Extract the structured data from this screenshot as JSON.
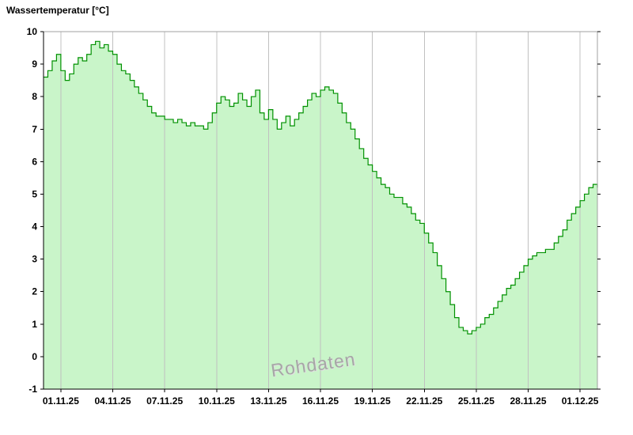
{
  "chart_data": {
    "type": "area",
    "title": "Wassertemperatur [°C]",
    "watermark": "Rohdaten",
    "series_name": "Wassertemperatur",
    "unit": "°C",
    "ylim": [
      -1,
      10
    ],
    "y_ticks": [
      -1,
      0,
      1,
      2,
      3,
      4,
      5,
      6,
      7,
      8,
      9,
      10
    ],
    "xlim_days": [
      0,
      32
    ],
    "x_start_day": 0,
    "x_step_days": 0.25,
    "x_ticks": {
      "days": [
        1,
        4,
        7,
        10,
        13,
        16,
        19,
        22,
        25,
        28,
        31
      ],
      "labels": [
        "01.11.25",
        "04.11.25",
        "07.11.25",
        "10.11.25",
        "13.11.25",
        "16.11.25",
        "19.11.25",
        "22.11.25",
        "25.11.25",
        "28.11.25",
        "01.12.25"
      ]
    },
    "values": [
      8.6,
      8.8,
      9.1,
      9.3,
      8.8,
      8.5,
      8.7,
      9.0,
      9.2,
      9.1,
      9.3,
      9.6,
      9.7,
      9.5,
      9.6,
      9.4,
      9.3,
      9.0,
      8.8,
      8.7,
      8.5,
      8.3,
      8.1,
      7.9,
      7.7,
      7.5,
      7.4,
      7.4,
      7.3,
      7.3,
      7.2,
      7.3,
      7.2,
      7.1,
      7.2,
      7.1,
      7.1,
      7.0,
      7.2,
      7.5,
      7.8,
      8.0,
      7.9,
      7.7,
      7.8,
      8.1,
      7.9,
      7.7,
      8.0,
      8.2,
      7.5,
      7.3,
      7.6,
      7.3,
      7.0,
      7.2,
      7.4,
      7.1,
      7.3,
      7.5,
      7.7,
      7.9,
      8.1,
      8.0,
      8.2,
      8.3,
      8.2,
      8.1,
      7.8,
      7.5,
      7.2,
      7.0,
      6.7,
      6.4,
      6.1,
      5.9,
      5.7,
      5.5,
      5.3,
      5.2,
      5.0,
      4.9,
      4.9,
      4.7,
      4.6,
      4.4,
      4.2,
      4.1,
      3.8,
      3.5,
      3.2,
      2.8,
      2.4,
      2.0,
      1.6,
      1.2,
      0.9,
      0.8,
      0.7,
      0.8,
      0.9,
      1.0,
      1.2,
      1.3,
      1.5,
      1.7,
      1.9,
      2.1,
      2.2,
      2.4,
      2.6,
      2.8,
      3.0,
      3.1,
      3.2,
      3.2,
      3.3,
      3.3,
      3.5,
      3.7,
      3.9,
      4.2,
      4.4,
      4.6,
      4.8,
      5.0,
      5.2,
      5.3,
      5.2
    ],
    "colors": {
      "fill": "#c9f5c9",
      "line": "#009100",
      "grid": "#c0c0c0",
      "axis": "#000000",
      "border": "#a0a0a0",
      "watermark": "#a6a6a6"
    },
    "layout": {
      "plot_left": 55,
      "plot_right": 755,
      "plot_top": 40,
      "plot_bottom": 492,
      "grid": "vertical-only",
      "legend": "none"
    }
  }
}
